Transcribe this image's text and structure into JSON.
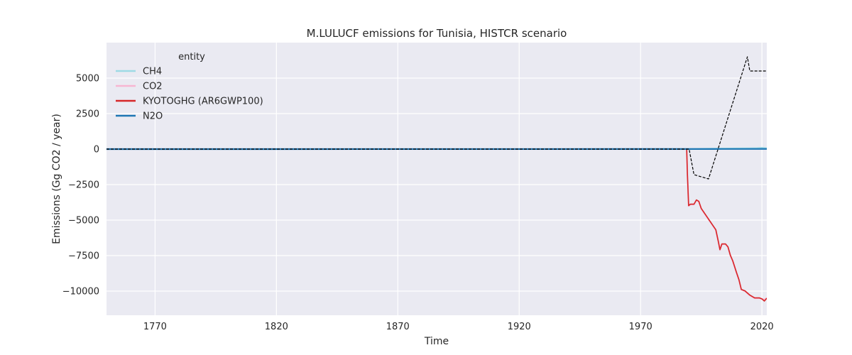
{
  "chart_data": {
    "type": "line",
    "title": "M.LULUCF emissions for Tunisia, HISTCR scenario",
    "xlabel": "Time",
    "ylabel": "Emissions (Gg CO2 / year)",
    "xlim": [
      1750,
      2022
    ],
    "ylim": [
      -11700,
      7500
    ],
    "xticks": [
      1770,
      1820,
      1870,
      1920,
      1970,
      2020
    ],
    "yticks": [
      5000,
      2500,
      0,
      -2500,
      -5000,
      -7500,
      -10000
    ],
    "ytick_labels": [
      "5000",
      "2500",
      "0",
      "−2500",
      "−5000",
      "−7500",
      "−10000"
    ],
    "grid": true,
    "legend": {
      "title": "entity",
      "placement": "top-left"
    },
    "series": [
      {
        "name": "CH4",
        "color": "#9edae5",
        "style": "solid",
        "x": [
          1750,
          1990,
          1995,
          2000,
          2005,
          2010,
          2015,
          2018,
          2020,
          2022
        ],
        "y": [
          0,
          0,
          20,
          30,
          40,
          50,
          60,
          70,
          90,
          60
        ]
      },
      {
        "name": "CO2",
        "color": "#f7b6d2",
        "style": "solid",
        "x": [
          1750,
          1989,
          1989.3,
          1989.8,
          1990.5,
          1992,
          1993,
          1994,
          1995,
          1997,
          1999,
          2001,
          2002,
          2002.7,
          2003.5,
          2005,
          2006,
          2007,
          2008,
          2009.5,
          2010.5,
          2011.5,
          2013,
          2015,
          2017,
          2019,
          2021,
          2022
        ],
        "y": [
          0,
          0,
          -1800,
          -4000,
          -3900,
          -3900,
          -3600,
          -3700,
          -4200,
          -4700,
          -5200,
          -5700,
          -6500,
          -7100,
          -6700,
          -6700,
          -6900,
          -7500,
          -7900,
          -8700,
          -9200,
          -9900,
          -10000,
          -10300,
          -10500,
          -10500,
          -10600,
          -10500
        ]
      },
      {
        "name": "KYOTOGHG (AR6GWP100)",
        "color": "#d62728",
        "style": "solid",
        "x": [
          1750,
          1989,
          1989.3,
          1989.8,
          1990.5,
          1992,
          1993,
          1994,
          1995,
          1997,
          1999,
          2001,
          2002,
          2002.7,
          2003.5,
          2005,
          2006,
          2007,
          2008,
          2009.5,
          2010.5,
          2011.5,
          2013,
          2015,
          2017,
          2019,
          2020,
          2021,
          2022
        ],
        "y": [
          0,
          0,
          -1780,
          -3980,
          -3880,
          -3880,
          -3580,
          -3680,
          -4180,
          -4680,
          -5180,
          -5680,
          -6480,
          -7080,
          -6680,
          -6680,
          -6880,
          -7480,
          -7880,
          -8680,
          -9180,
          -9880,
          -9980,
          -10280,
          -10480,
          -10480,
          -10550,
          -10700,
          -10500
        ]
      },
      {
        "name": "N2O",
        "color": "#1f77b4",
        "style": "solid",
        "x": [
          1750,
          1990,
          2000,
          2010,
          2022
        ],
        "y": [
          0,
          5,
          8,
          10,
          12
        ]
      },
      {
        "name": "",
        "color": "#000000",
        "style": "dashed",
        "x": [
          1750,
          1990,
          1992,
          1998,
          2014,
          2015,
          2022
        ],
        "y": [
          0,
          0,
          -1800,
          -2100,
          6500,
          5500,
          5500
        ]
      }
    ]
  }
}
